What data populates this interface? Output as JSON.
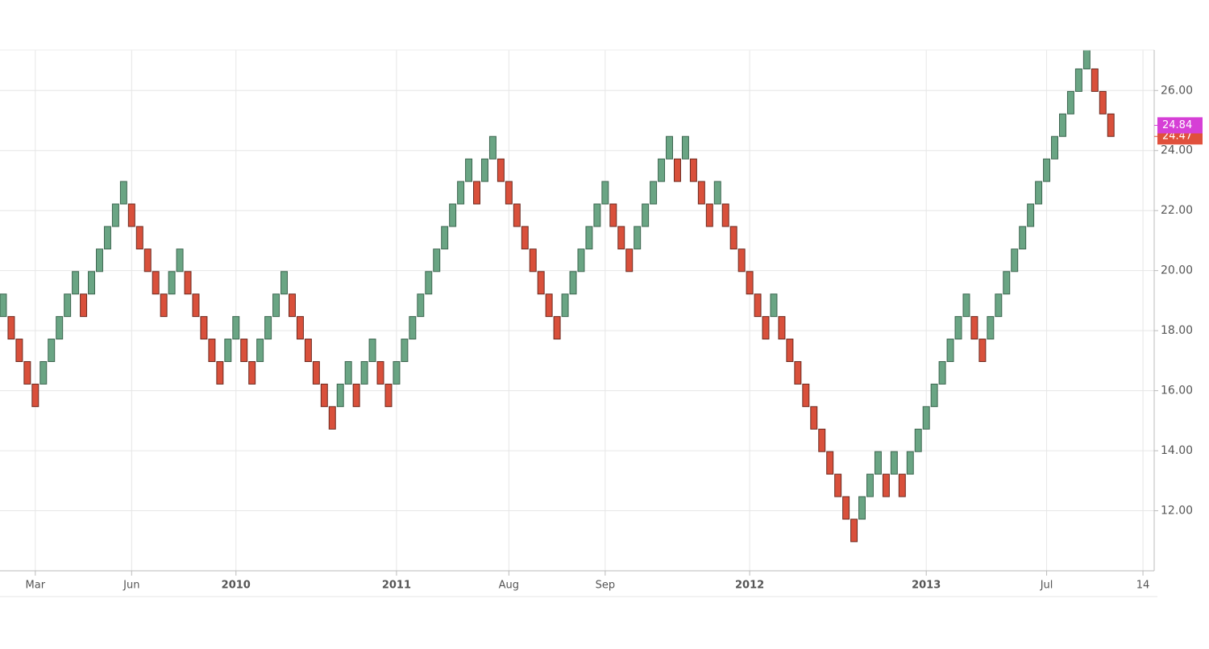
{
  "chart_data": {
    "type": "renko",
    "open": [
      18.47,
      18.47,
      17.72,
      16.97,
      16.22,
      16.22,
      16.97,
      17.72,
      18.47,
      19.22,
      19.22,
      19.22,
      19.97,
      20.72,
      21.47,
      22.22,
      22.22,
      21.47,
      20.72,
      19.97,
      19.22,
      19.22,
      19.97,
      19.97,
      19.22,
      18.47,
      17.72,
      16.97,
      16.97,
      17.72,
      17.72,
      16.97,
      16.97,
      17.72,
      18.47,
      19.22,
      19.22,
      18.47,
      17.72,
      16.97,
      16.22,
      15.47,
      15.47,
      16.22,
      16.22,
      16.22,
      16.97,
      16.97,
      16.22,
      16.22,
      16.97,
      17.72,
      18.47,
      19.22,
      19.97,
      20.72,
      21.47,
      22.22,
      22.97,
      22.97,
      22.97,
      23.72,
      23.72,
      22.97,
      22.22,
      21.47,
      20.72,
      19.97,
      19.22,
      18.47,
      18.47,
      19.22,
      19.97,
      20.72,
      21.47,
      22.22,
      22.22,
      21.47,
      20.72,
      20.72,
      21.47,
      22.22,
      22.97,
      23.72,
      23.72,
      23.72,
      23.72,
      22.97,
      22.22,
      22.22,
      22.22,
      21.47,
      20.72,
      19.97,
      19.22,
      18.47,
      18.47,
      18.47,
      17.72,
      16.97,
      16.22,
      15.47,
      14.72,
      13.97,
      13.22,
      12.47,
      11.72,
      11.72,
      12.47,
      13.22,
      13.22,
      13.22,
      13.22,
      13.22,
      13.97,
      14.72,
      15.47,
      16.22,
      16.97,
      17.72,
      18.47,
      18.47,
      17.72,
      17.72,
      18.47,
      19.22,
      19.97,
      20.72,
      21.47,
      22.22,
      22.97,
      23.72,
      24.47,
      25.22,
      25.97,
      26.72,
      26.72,
      25.97,
      25.22
    ],
    "close": [
      19.22,
      17.72,
      16.97,
      16.22,
      15.47,
      16.97,
      17.72,
      18.47,
      19.22,
      19.97,
      18.47,
      19.97,
      20.72,
      21.47,
      22.22,
      22.97,
      21.47,
      20.72,
      19.97,
      19.22,
      18.47,
      19.97,
      20.72,
      19.22,
      18.47,
      17.72,
      16.97,
      16.22,
      17.72,
      18.47,
      16.97,
      16.22,
      17.72,
      18.47,
      19.22,
      19.97,
      18.47,
      17.72,
      16.97,
      16.22,
      15.47,
      14.72,
      16.22,
      16.97,
      15.47,
      16.97,
      17.72,
      16.22,
      15.47,
      16.97,
      17.72,
      18.47,
      19.22,
      19.97,
      20.72,
      21.47,
      22.22,
      22.97,
      23.72,
      22.22,
      23.72,
      24.47,
      22.97,
      22.22,
      21.47,
      20.72,
      19.97,
      19.22,
      18.47,
      17.72,
      19.22,
      19.97,
      20.72,
      21.47,
      22.22,
      22.97,
      21.47,
      20.72,
      19.97,
      21.47,
      22.22,
      22.97,
      23.72,
      24.47,
      22.97,
      24.47,
      22.97,
      22.22,
      21.47,
      22.97,
      21.47,
      20.72,
      19.97,
      19.22,
      18.47,
      17.72,
      19.22,
      17.72,
      16.97,
      16.22,
      15.47,
      14.72,
      13.97,
      13.22,
      12.47,
      11.72,
      10.97,
      12.47,
      13.22,
      13.97,
      12.47,
      13.97,
      12.47,
      13.97,
      14.72,
      15.47,
      16.22,
      16.97,
      17.72,
      18.47,
      19.22,
      17.72,
      16.97,
      18.47,
      19.22,
      19.97,
      20.72,
      21.47,
      22.22,
      22.97,
      23.72,
      24.47,
      25.22,
      25.97,
      26.72,
      27.47,
      25.97,
      25.22,
      24.47
    ],
    "up_color": "#6aa584",
    "down_color": "#d9503b",
    "ylim": [
      10,
      27.35
    ],
    "yticks": [
      {
        "value": 12,
        "label": "12.00"
      },
      {
        "value": 14,
        "label": "14.00"
      },
      {
        "value": 16,
        "label": "16.00"
      },
      {
        "value": 18,
        "label": "18.00"
      },
      {
        "value": 20,
        "label": "20.00"
      },
      {
        "value": 22,
        "label": "22.00"
      },
      {
        "value": 24,
        "label": "24.00"
      },
      {
        "value": 26,
        "label": "26.00"
      }
    ],
    "xlim": [
      -0.4,
      143.4
    ],
    "xticks": [
      {
        "value": 4,
        "label": "Mar"
      },
      {
        "value": 16,
        "label": "Jun"
      },
      {
        "value": 29,
        "label": "2010"
      },
      {
        "value": 49,
        "label": "2011"
      },
      {
        "value": 63,
        "label": "Aug"
      },
      {
        "value": 75,
        "label": "Sep"
      },
      {
        "value": 93,
        "label": "2012"
      },
      {
        "value": 115,
        "label": "2013"
      },
      {
        "value": 130,
        "label": "Jul"
      },
      {
        "value": 142,
        "label": "14"
      }
    ],
    "grid": true,
    "price_labels": [
      {
        "value": 24.47,
        "color": "#e0503c"
      },
      {
        "value": 24.84,
        "color": "#d63fd6"
      }
    ]
  }
}
